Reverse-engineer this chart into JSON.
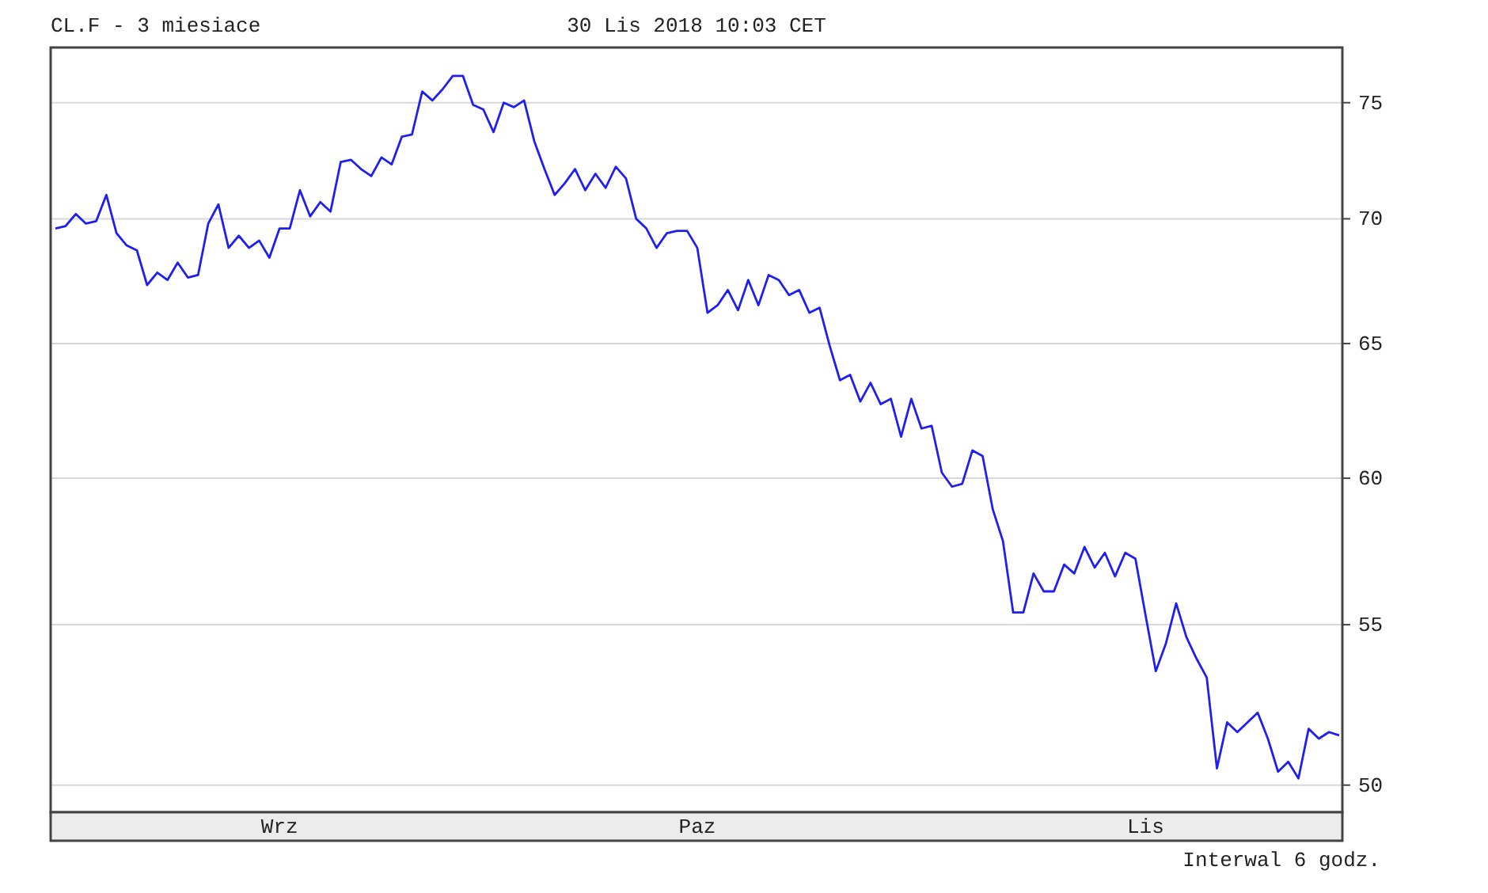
{
  "chart_data": {
    "type": "line",
    "title": "CL.F - 3 miesiace",
    "subtitle": "30 Lis 2018 10:03 CET",
    "annotations": [
      "Interwal 6 godz."
    ],
    "log": "y",
    "grid": "y",
    "ylim": [
      49.2,
      77.5
    ],
    "yticks": [
      50,
      55,
      60,
      65,
      70,
      75
    ],
    "categories": [
      null,
      null,
      null,
      null,
      null,
      null,
      null,
      null,
      null,
      null,
      null,
      null,
      null,
      null,
      null,
      null,
      null,
      null,
      null,
      null,
      null,
      null,
      "Wrz",
      null,
      null,
      null,
      null,
      null,
      null,
      null,
      null,
      null,
      null,
      null,
      null,
      null,
      null,
      null,
      null,
      null,
      null,
      null,
      null,
      null,
      null,
      null,
      null,
      null,
      null,
      null,
      null,
      null,
      null,
      null,
      null,
      null,
      null,
      null,
      null,
      null,
      null,
      null,
      null,
      "Paz",
      null,
      null,
      null,
      null,
      null,
      null,
      null,
      null,
      null,
      null,
      null,
      null,
      null,
      null,
      null,
      null,
      null,
      null,
      null,
      null,
      null,
      null,
      null,
      null,
      null,
      null,
      null,
      null,
      null,
      null,
      null,
      null,
      null,
      null,
      null,
      null,
      null,
      null,
      null,
      null,
      null,
      null,
      null,
      "Lis",
      null,
      null,
      null,
      null,
      null,
      null,
      null,
      null,
      null,
      null,
      null,
      null,
      null,
      null,
      null,
      null,
      null,
      null,
      null
    ],
    "series": [
      {
        "color": "#1f1fef",
        "values": [
          69.6,
          69.7,
          70.2,
          69.8,
          69.9,
          71.0,
          69.4,
          68.9,
          68.7,
          67.3,
          67.8,
          67.5,
          68.2,
          67.6,
          67.7,
          69.8,
          70.6,
          68.8,
          69.3,
          68.8,
          69.1,
          68.4,
          69.6,
          69.6,
          71.2,
          70.1,
          70.7,
          70.3,
          72.4,
          72.5,
          72.1,
          71.8,
          72.6,
          72.3,
          73.5,
          73.6,
          75.5,
          75.1,
          75.6,
          76.2,
          76.2,
          74.9,
          74.7,
          73.7,
          75.0,
          74.8,
          75.1,
          73.3,
          72.1,
          71.0,
          71.5,
          72.1,
          71.2,
          71.9,
          71.3,
          72.2,
          71.7,
          70.0,
          69.6,
          68.8,
          69.4,
          69.5,
          69.5,
          68.8,
          66.2,
          66.5,
          67.1,
          66.3,
          67.5,
          66.5,
          67.7,
          67.5,
          66.9,
          67.1,
          66.2,
          66.4,
          64.9,
          63.6,
          63.8,
          62.8,
          63.5,
          62.7,
          62.9,
          61.5,
          62.9,
          61.8,
          61.9,
          60.2,
          59.7,
          59.8,
          61.0,
          60.8,
          58.9,
          57.8,
          55.4,
          55.4,
          56.7,
          56.1,
          56.1,
          57.0,
          56.7,
          57.6,
          56.9,
          57.4,
          56.6,
          57.4,
          57.2,
          55.3,
          53.5,
          54.4,
          55.7,
          54.6,
          53.9,
          53.3,
          50.5,
          51.9,
          51.6,
          51.9,
          52.2,
          51.4,
          50.4,
          50.7,
          50.2,
          51.7,
          51.4,
          51.6,
          51.5
        ]
      }
    ]
  }
}
